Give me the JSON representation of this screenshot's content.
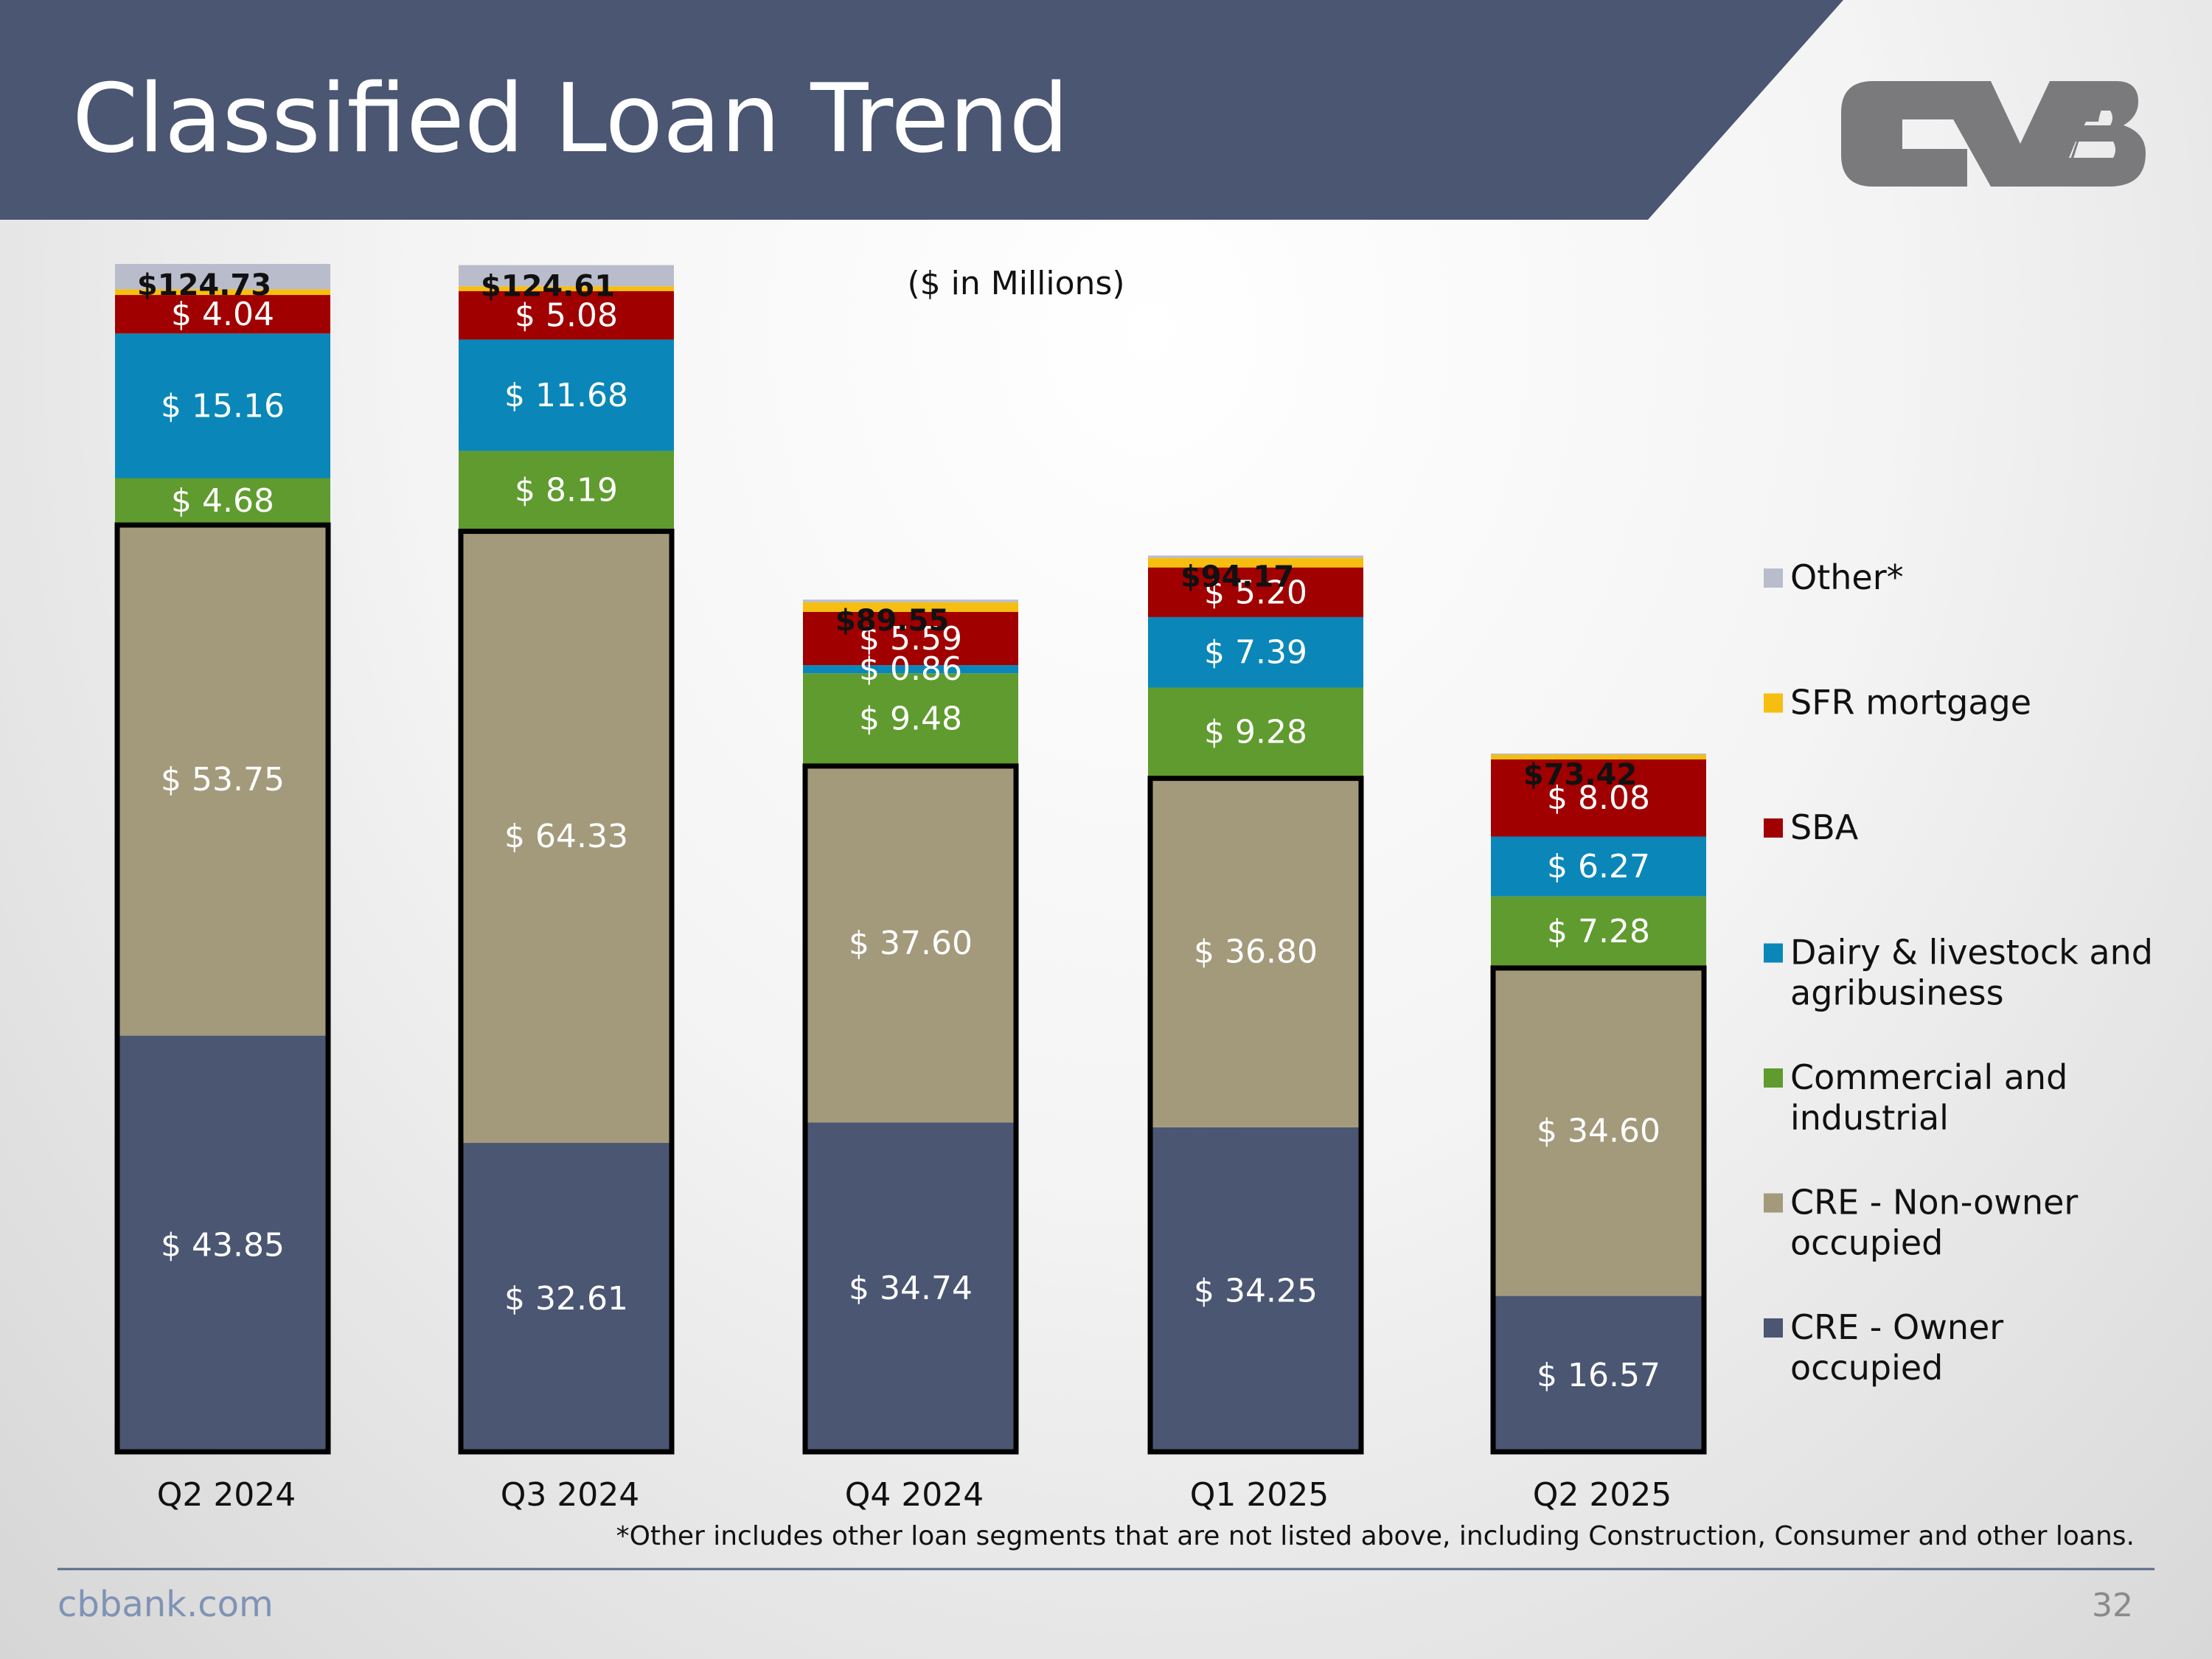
{
  "slide": {
    "title": "Classified Loan Trend",
    "units_note": "($ in Millions)",
    "footnote": "*Other includes other loan segments that are not listed above, including Construction, Consumer and other loans.",
    "website": "cbbank.com",
    "page_number": "32",
    "logo_text": "CVB"
  },
  "colors": {
    "header": "#4a5672",
    "logo": "#7a7a7c",
    "footer_line": "#5a6a8a",
    "label_dark": "#111111",
    "label_light": "#ffffff"
  },
  "chart_data": {
    "type": "bar",
    "stacked": true,
    "title": "Classified Loan Trend",
    "ylabel": "($ in Millions)",
    "categories": [
      "Q2 2024",
      "Q3 2024",
      "Q4 2024",
      "Q1 2025",
      "Q2 2025"
    ],
    "totals": [
      124.73,
      124.61,
      89.55,
      94.17,
      73.42
    ],
    "total_labels": [
      "$124.73",
      "$124.61",
      "$89.55",
      "$94.17",
      "$73.42"
    ],
    "outlined_series": [
      "CRE - Owner occupied",
      "CRE - Non-owner occupied"
    ],
    "legend_position": "right",
    "series": [
      {
        "name": "CRE - Owner occupied",
        "color": "#4a5672",
        "values": [
          43.85,
          32.61,
          34.74,
          34.25,
          16.57
        ],
        "labels": [
          "$ 43.85",
          "$ 32.61",
          "$ 34.74",
          "$ 34.25",
          "$ 16.57"
        ]
      },
      {
        "name": "CRE - Non-owner occupied",
        "color": "#a39a7c",
        "values": [
          53.75,
          64.33,
          37.6,
          36.8,
          34.6
        ],
        "labels": [
          "$ 53.75",
          "$ 64.33",
          "$ 37.60",
          "$ 36.80",
          "$ 34.60"
        ]
      },
      {
        "name": "Commercial and industrial",
        "color": "#5f9b2e",
        "values": [
          4.68,
          8.19,
          9.48,
          9.28,
          7.28
        ],
        "labels": [
          "$ 4.68",
          "$ 8.19",
          "$ 9.48",
          "$ 9.28",
          "$ 7.28"
        ]
      },
      {
        "name": "Dairy & livestock and agribusiness",
        "color": "#0a87b8",
        "values": [
          15.16,
          11.68,
          0.86,
          7.39,
          6.27
        ],
        "labels": [
          "$ 15.16",
          "$ 11.68",
          "$ 0.86",
          "$ 7.39",
          "$ 6.27"
        ]
      },
      {
        "name": "SBA",
        "color": "#a00000",
        "values": [
          4.04,
          5.08,
          5.59,
          5.2,
          8.08
        ],
        "labels": [
          "$ 4.04",
          "$ 5.08",
          "$ 5.59",
          "$ 5.20",
          "$ 8.08"
        ]
      },
      {
        "name": "SFR mortgage",
        "color": "#f5be10",
        "values": [
          0.6,
          0.5,
          1.0,
          1.0,
          0.5
        ],
        "labels": [
          "",
          "",
          "",
          "",
          ""
        ]
      },
      {
        "name": "Other*",
        "color": "#b9bccb",
        "values": [
          2.65,
          2.22,
          0.28,
          0.25,
          0.12
        ],
        "labels": [
          "",
          "",
          "",
          "",
          ""
        ]
      }
    ],
    "legend_order": [
      "Other*",
      "SFR mortgage",
      "SBA",
      "Dairy & livestock and agribusiness",
      "Commercial and industrial",
      "CRE - Non-owner occupied",
      "CRE - Owner occupied"
    ],
    "legend_lines": {
      "Other*": [
        "Other*"
      ],
      "SFR mortgage": [
        "SFR mortgage"
      ],
      "SBA": [
        "SBA"
      ],
      "Dairy & livestock and agribusiness": [
        "Dairy & livestock and",
        "agribusiness"
      ],
      "Commercial and industrial": [
        "Commercial and",
        "industrial"
      ],
      "CRE - Non-owner occupied": [
        "CRE - Non-owner",
        "occupied"
      ],
      "CRE - Owner occupied": [
        "CRE - Owner",
        "occupied"
      ]
    }
  }
}
